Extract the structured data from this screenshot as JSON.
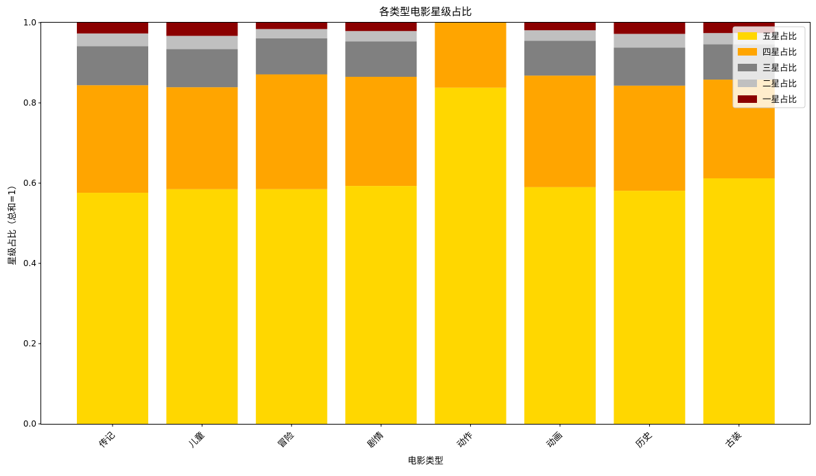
{
  "chart_data": {
    "type": "bar",
    "stacked": true,
    "title": "各类型电影星级占比",
    "xlabel": "电影类型",
    "ylabel": "星级占比（总和=1）",
    "ylim": [
      0,
      1.0
    ],
    "yticks": [
      "0.0",
      "0.2",
      "0.4",
      "0.6",
      "0.8",
      "1.0"
    ],
    "legend_position": "top-right",
    "grid": false,
    "categories": [
      "传记",
      "儿童",
      "冒险",
      "剧情",
      "动作",
      "动画",
      "历史",
      "古装"
    ],
    "series": [
      {
        "name": "五星占比",
        "color": "#FFD700",
        "values": [
          0.576,
          0.585,
          0.585,
          0.593,
          0.838,
          0.59,
          0.581,
          0.612
        ]
      },
      {
        "name": "四星占比",
        "color": "#FFA500",
        "values": [
          0.268,
          0.254,
          0.286,
          0.272,
          0.162,
          0.278,
          0.262,
          0.246
        ]
      },
      {
        "name": "三星占比",
        "color": "#808080",
        "values": [
          0.097,
          0.095,
          0.09,
          0.088,
          0.0,
          0.087,
          0.095,
          0.088
        ]
      },
      {
        "name": "二星占比",
        "color": "#C0C0C0",
        "values": [
          0.032,
          0.033,
          0.023,
          0.026,
          0.0,
          0.026,
          0.034,
          0.028
        ]
      },
      {
        "name": "一星占比",
        "color": "#8B0000",
        "values": [
          0.027,
          0.033,
          0.016,
          0.021,
          0.0,
          0.019,
          0.028,
          0.026
        ]
      }
    ]
  }
}
